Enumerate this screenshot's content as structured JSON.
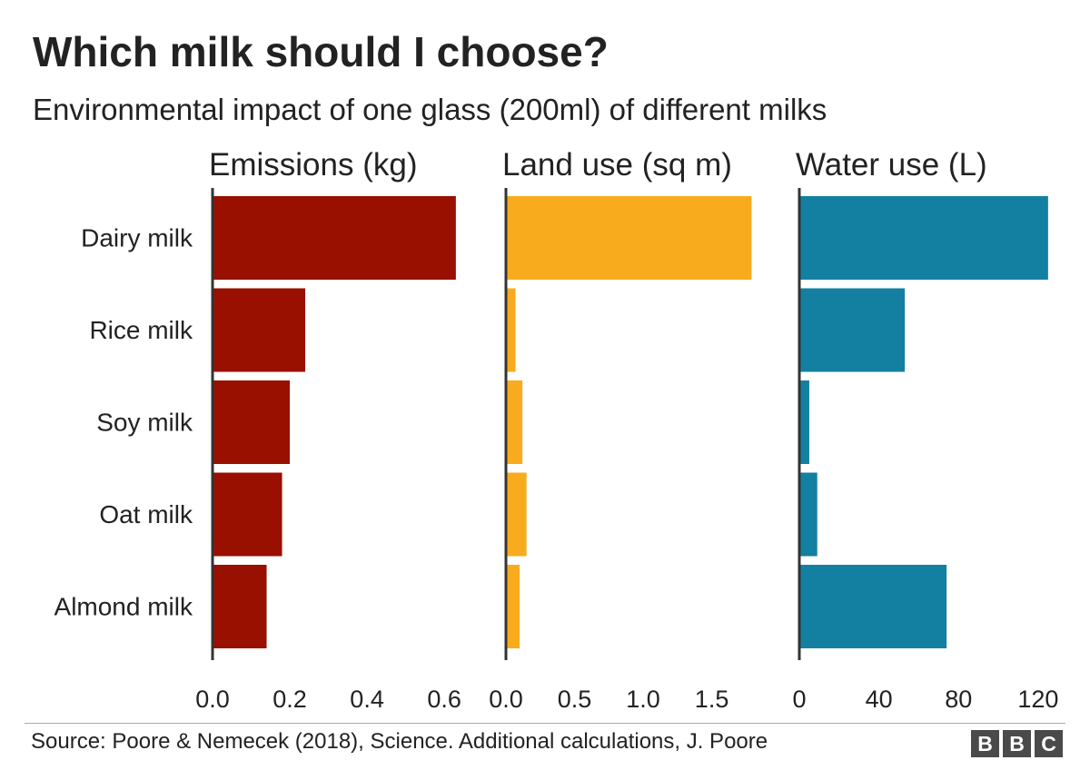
{
  "title": "Which milk should I choose?",
  "subtitle": "Environmental impact of one glass (200ml) of different milks",
  "source": "Source: Poore & Nemecek (2018), Science. Additional calculations, J. Poore",
  "logo": {
    "letters": [
      "B",
      "B",
      "C"
    ]
  },
  "chart_data": {
    "type": "bar",
    "orientation": "horizontal",
    "categories": [
      "Dairy milk",
      "Rice milk",
      "Soy milk",
      "Oat milk",
      "Almond milk"
    ],
    "panels": [
      {
        "name": "Emissions (kg)",
        "color": "#990f00",
        "values": [
          0.63,
          0.24,
          0.2,
          0.18,
          0.14
        ],
        "ticks": [
          "0.0",
          "0.2",
          "0.4",
          "0.6"
        ],
        "tick_values": [
          0,
          0.2,
          0.4,
          0.6
        ],
        "xlim": [
          0,
          0.675
        ]
      },
      {
        "name": "Land use (sq m)",
        "color": "#f9ab1e",
        "values": [
          1.79,
          0.07,
          0.12,
          0.15,
          0.1
        ],
        "ticks": [
          "0.0",
          "0.5",
          "1.0",
          "1.5"
        ],
        "tick_values": [
          0,
          0.5,
          1.0,
          1.5
        ],
        "xlim": [
          0,
          1.9
        ]
      },
      {
        "name": "Water use (L)",
        "color": "#1380a1",
        "values": [
          125,
          53,
          5,
          9,
          74
        ],
        "ticks": [
          "0",
          "40",
          "80",
          "120"
        ],
        "tick_values": [
          0,
          40,
          80,
          120
        ],
        "xlim": [
          0,
          131
        ]
      }
    ]
  }
}
